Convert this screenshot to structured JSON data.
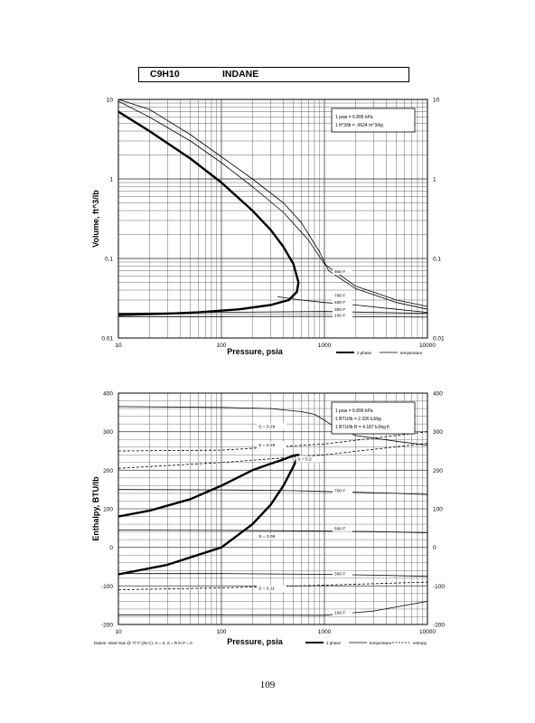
{
  "header": {
    "formula": "C9H10",
    "name": "INDANE"
  },
  "page_number": "109",
  "colors": {
    "ink": "#000000",
    "grid": "#555555",
    "background": "#ffffff"
  },
  "chart_data": [
    {
      "type": "line",
      "id": "volume",
      "xlabel": "Pressure,  psia",
      "ylabel": "Volume, ft^3/lb",
      "xscale": "log",
      "yscale": "log",
      "xlim": [
        10,
        10000
      ],
      "ylim": [
        0.01,
        10
      ],
      "x_ticks": [
        10,
        100,
        1000,
        10000
      ],
      "x_tick_labels": [
        "10",
        "100",
        "1000",
        "10000"
      ],
      "y_ticks": [
        0.01,
        0.1,
        1,
        10
      ],
      "y_tick_labels": [
        "0.01",
        "0.1",
        "1",
        "10"
      ],
      "grid": true,
      "conversion_box": [
        "1 psia  =  6.895 kPa",
        "1  ft^3/lb  =  .0624 m^3/kg"
      ],
      "legend": {
        "position": "bottom-right",
        "entries": [
          "2 phase",
          "temperature"
        ]
      },
      "series": [
        {
          "name": "2 phase",
          "style": "thick",
          "x": [
            10,
            20,
            50,
            100,
            200,
            300,
            400,
            500,
            560,
            540,
            450,
            300,
            150,
            60,
            30,
            10
          ],
          "y": [
            7,
            4,
            1.8,
            0.9,
            0.4,
            0.23,
            0.14,
            0.085,
            0.05,
            0.038,
            0.03,
            0.026,
            0.023,
            0.021,
            0.0202,
            0.0195
          ]
        },
        {
          "name": "isotherm-a",
          "style": "thin",
          "x": [
            10,
            20,
            50,
            100,
            200,
            400,
            700,
            1000,
            2000,
            5000,
            10000
          ],
          "y": [
            9.5,
            6,
            3,
            1.6,
            0.8,
            0.38,
            0.17,
            0.085,
            0.045,
            0.03,
            0.025
          ]
        },
        {
          "name": "isotherm-b",
          "style": "thin",
          "x": [
            10,
            20,
            50,
            100,
            200,
            400,
            600,
            900,
            1100,
            2000,
            5000,
            10000
          ],
          "y": [
            10,
            7.5,
            3.6,
            1.9,
            1,
            0.5,
            0.28,
            0.12,
            0.07,
            0.042,
            0.028,
            0.023
          ]
        },
        {
          "name": "isotherm-c",
          "style": "thin",
          "x": [
            350,
            600,
            1000,
            2000,
            5000,
            10000
          ],
          "y": [
            0.033,
            0.03,
            0.028,
            0.026,
            0.023,
            0.021
          ]
        },
        {
          "name": "isotherm-d",
          "style": "thin",
          "x": [
            10,
            100,
            1000,
            10000
          ],
          "y": [
            0.0205,
            0.021,
            0.0215,
            0.0205
          ]
        },
        {
          "name": "isotherm-e",
          "style": "thin",
          "x": [
            10,
            100,
            1000,
            10000
          ],
          "y": [
            0.0185,
            0.0186,
            0.0187,
            0.0183
          ]
        }
      ],
      "curve_labels": [
        {
          "text": "900 F",
          "x": 1250,
          "y": 0.066
        },
        {
          "text": "700 F",
          "x": 1250,
          "y": 0.033
        },
        {
          "text": "500 F",
          "x": 1250,
          "y": 0.027
        },
        {
          "text": "300 F",
          "x": 1250,
          "y": 0.022
        },
        {
          "text": "100 F",
          "x": 1250,
          "y": 0.0185
        }
      ]
    },
    {
      "type": "line",
      "id": "enthalpy",
      "xlabel": "Pressure,  psia",
      "ylabel": "Enthalpy, BTU/lb",
      "xscale": "log",
      "yscale": "linear",
      "xlim": [
        10,
        10000
      ],
      "ylim": [
        -200,
        400
      ],
      "x_ticks": [
        10,
        100,
        1000,
        10000
      ],
      "x_tick_labels": [
        "10",
        "100",
        "1000",
        "10000"
      ],
      "y_ticks": [
        -200,
        -100,
        0,
        100,
        200,
        300,
        400
      ],
      "y_tick_labels": [
        "-200",
        "-100",
        "0",
        "100",
        "200",
        "300",
        "400"
      ],
      "grid": true,
      "conversion_box": [
        "1 psia  =  6.895 kPa",
        "1 BTU/lb  =  2.326 kJ/kg",
        "1 BTU/lb R  =  4.187 kJ/kg K"
      ],
      "footnote": "Datum: Ideal Gas @ 77 F (25 C),  H = 0,  S = R ln P = 0",
      "legend": {
        "position": "bottom-right",
        "entries": [
          "2 phase",
          "temperature",
          "entropy"
        ]
      },
      "series": [
        {
          "name": "2 phase",
          "style": "thick",
          "x": [
            10,
            30,
            100,
            200,
            300,
            400,
            500,
            560,
            500,
            400,
            300,
            200,
            100,
            50,
            20,
            10
          ],
          "y": [
            -70,
            -45,
            0,
            60,
            110,
            160,
            210,
            240,
            238,
            228,
            217,
            200,
            160,
            125,
            95,
            80
          ]
        },
        {
          "name": "900 F",
          "style": "thin",
          "x": [
            10,
            100,
            300,
            600,
            800,
            1000,
            1300,
            2000,
            5000,
            10000
          ],
          "y": [
            365,
            363,
            360,
            352,
            345,
            330,
            310,
            290,
            275,
            265
          ]
        },
        {
          "name": "700 F",
          "style": "thin",
          "x": [
            10,
            100,
            500,
            1000,
            2000,
            5000,
            10000
          ],
          "y": [
            150,
            149,
            147,
            145,
            143,
            140,
            137
          ]
        },
        {
          "name": "500 F",
          "style": "thin",
          "x": [
            10,
            100,
            500,
            1000,
            3000,
            10000
          ],
          "y": [
            45,
            44,
            43,
            42,
            41,
            38
          ]
        },
        {
          "name": "300 F",
          "style": "thin",
          "x": [
            10,
            100,
            1000,
            3000,
            10000
          ],
          "y": [
            -68,
            -68,
            -70,
            -72,
            -75
          ]
        },
        {
          "name": "100 F",
          "style": "thin",
          "x": [
            10,
            100,
            1000,
            3000,
            10000
          ],
          "y": [
            -175,
            -175,
            -176,
            -165,
            -140
          ]
        },
        {
          "name": "S = 0.29",
          "style": "dashed",
          "x": [
            10,
            100,
            1000,
            10000
          ],
          "y": [
            250,
            252,
            268,
            300
          ]
        },
        {
          "name": "S = 0.11",
          "style": "dashed",
          "x": [
            10,
            100,
            1000,
            10000
          ],
          "y": [
            -110,
            -105,
            -98,
            -90
          ]
        },
        {
          "name": "entropy-b",
          "style": "dashed",
          "x": [
            10,
            100,
            1000,
            10000
          ],
          "y": [
            205,
            220,
            240,
            270
          ]
        }
      ],
      "curve_labels": [
        {
          "text": "S = 0.29",
          "x": 230,
          "y": 310
        },
        {
          "text": "S = 0.29",
          "x": 230,
          "y": 262
        },
        {
          "text": "S = 0.2",
          "x": 550,
          "y": 225
        },
        {
          "text": "900 F",
          "x": 1250,
          "y": 295
        },
        {
          "text": "700 F",
          "x": 1250,
          "y": 143
        },
        {
          "text": "500 F",
          "x": 1250,
          "y": 45
        },
        {
          "text": "S = 0.09",
          "x": 230,
          "y": 25
        },
        {
          "text": "300 F",
          "x": 1250,
          "y": -72
        },
        {
          "text": "S = 0.11",
          "x": 230,
          "y": -110
        },
        {
          "text": "100 F",
          "x": 1250,
          "y": -173
        }
      ]
    }
  ]
}
